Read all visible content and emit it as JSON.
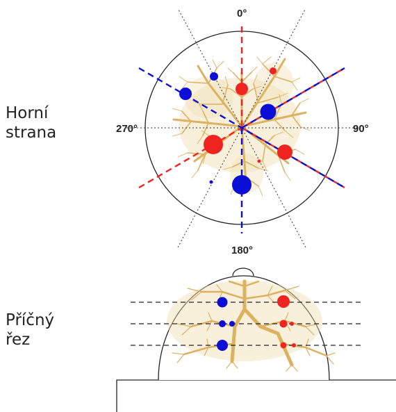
{
  "labels": {
    "top_view_line1": "Horní",
    "top_view_line2": "strana",
    "cross_section_line1": "Příčný",
    "cross_section_line2": "řez"
  },
  "angles": {
    "top": "0°",
    "right": "90°",
    "bottom": "180°",
    "left": "270°"
  },
  "colors": {
    "red": "#ef2320",
    "blue": "#0b0fd6",
    "tree": "#dcb15f",
    "outline": "#222222"
  }
}
